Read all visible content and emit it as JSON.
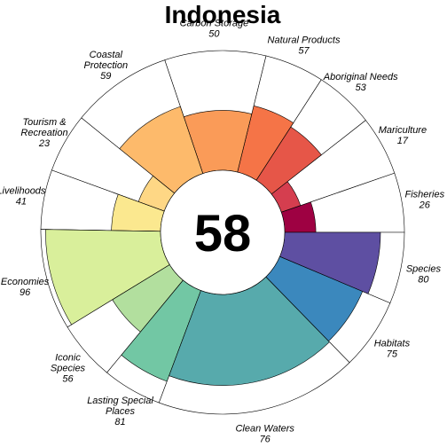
{
  "chart_data": {
    "type": "flower",
    "title": "Indonesia",
    "score": "58",
    "value_range": [
      0,
      100
    ],
    "petals": [
      {
        "label": [
          "Fisheries"
        ],
        "value": 26,
        "color": "#9e0142",
        "weight": 1
      },
      {
        "label": [
          "Mariculture"
        ],
        "value": 17,
        "color": "#d53e4f",
        "weight": 1
      },
      {
        "label": [
          "Aboriginal Needs"
        ],
        "value": 53,
        "color": "#e65648",
        "weight": 1
      },
      {
        "label": [
          "Natural Products"
        ],
        "value": 57,
        "color": "#f57447",
        "weight": 1
      },
      {
        "label": [
          "Carbon Storage"
        ],
        "value": 50,
        "color": "#fa9b58",
        "weight": 1.7
      },
      {
        "label": [
          "Coastal",
          "Protection"
        ],
        "value": 59,
        "color": "#fdba6b",
        "weight": 1.7
      },
      {
        "label": [
          "Tourism &",
          "Recreation"
        ],
        "value": 23,
        "color": "#fed785",
        "weight": 1
      },
      {
        "label": [
          "Livelihoods"
        ],
        "value": 41,
        "color": "#fbe88f",
        "weight": 1
      },
      {
        "label": [
          "Economies"
        ],
        "value": 96,
        "color": "#d9ef9b",
        "weight": 1.7
      },
      {
        "label": [
          "Iconic",
          "Species"
        ],
        "value": 56,
        "color": "#b2df9e",
        "weight": 1
      },
      {
        "label": [
          "Lasting Special",
          "Places"
        ],
        "value": 81,
        "color": "#72c7a4",
        "weight": 1
      },
      {
        "label": [
          "Clean Waters"
        ],
        "value": 76,
        "color": "#57aaac",
        "weight": 3.4
      },
      {
        "label": [
          "Habitats"
        ],
        "value": 75,
        "color": "#3b88bd",
        "weight": 1.2
      },
      {
        "label": [
          "Species"
        ],
        "value": 80,
        "color": "#5e4fa2",
        "weight": 1.2
      }
    ]
  }
}
